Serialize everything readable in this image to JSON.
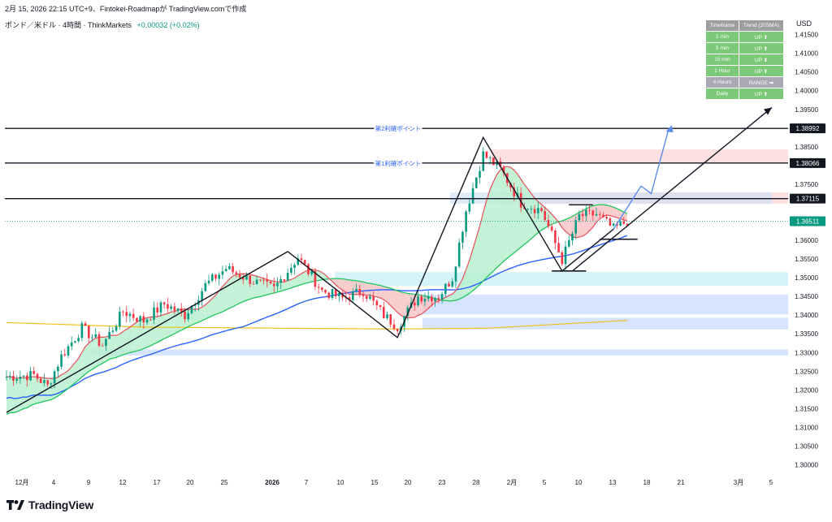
{
  "header": {
    "published": "2月 15, 2026 22:15 UTC+9、Fintokei-Roadmapが TradingView.comで作成",
    "symbol": "ポンド／米ドル · 4時間 · ThinkMarkets",
    "change": "+0.00032 (+0.02%)"
  },
  "currency": "USD",
  "brand": "TradingView",
  "trend_table": {
    "headers": [
      "Timeframe",
      "Trend (20SMA)"
    ],
    "rows": [
      {
        "tf": "1 min",
        "trend": "UP ⬆"
      },
      {
        "tf": "5 min",
        "trend": "UP ⬆"
      },
      {
        "tf": "15 min",
        "trend": "UP ⬆"
      },
      {
        "tf": "1 Hour",
        "trend": "UP ⬆"
      },
      {
        "tf": "4 Hours",
        "trend": "RANGE ➡"
      },
      {
        "tf": "Daily",
        "trend": "UP ⬆"
      }
    ]
  },
  "colors": {
    "up": "#089981",
    "down": "#f23645",
    "ma_fast": "#e8505b",
    "ma_mid": "#22c55e",
    "ma_slow": "#2962ff",
    "ma_long": "#f0c020",
    "fill_up": "#b8f0cf",
    "fill_down": "#f8c4c4",
    "zone_blue": "#d6e4ff",
    "zone_cyan": "#d5f3f8",
    "zone_red": "#fde0e0",
    "forecast": "#5b8def",
    "last_price": "#089981"
  },
  "chart_data": {
    "type": "candlestick",
    "y_range": [
      1.2975,
      1.416
    ],
    "y_ticks": [
      "1.41500",
      "1.41000",
      "1.40500",
      "1.40000",
      "1.39500",
      "1.39000",
      "1.38500",
      "1.38000",
      "1.37500",
      "1.37000",
      "1.36500",
      "1.36000",
      "1.35500",
      "1.35000",
      "1.34500",
      "1.34000",
      "1.33500",
      "1.33000",
      "1.32500",
      "1.32000",
      "1.31500",
      "1.31000",
      "1.30500",
      "1.30000"
    ],
    "x_ticks": [
      "12月",
      "4",
      "9",
      "12",
      "17",
      "20",
      "25",
      "2026",
      "7",
      "10",
      "15",
      "20",
      "23",
      "28",
      "2月",
      "5",
      "10",
      "13",
      "18",
      "21",
      "3月",
      "5"
    ],
    "levels": [
      {
        "price": 1.38992,
        "label": "1.38992",
        "note": "第2利確ポイント"
      },
      {
        "price": 1.38066,
        "label": "1.38066",
        "note": "第1利確ポイント"
      },
      {
        "price": 1.37115,
        "label": "1.37115",
        "note": ""
      }
    ],
    "last_price": {
      "price": 1.36511,
      "label": "1.36511"
    },
    "zones": [
      {
        "type": "resistance",
        "from": 1.3805,
        "to": 1.3843,
        "color": "red"
      },
      {
        "type": "resistance",
        "from": 1.3698,
        "to": 1.3728,
        "color": "red"
      },
      {
        "type": "support",
        "from": 1.3478,
        "to": 1.3515,
        "color": "cyan"
      },
      {
        "type": "support",
        "from": 1.3402,
        "to": 1.3455,
        "color": "blue"
      },
      {
        "type": "support",
        "from": 1.3362,
        "to": 1.3393,
        "color": "blue"
      },
      {
        "type": "support",
        "from": 1.3292,
        "to": 1.3308,
        "color": "blue"
      }
    ],
    "pattern_points": [
      {
        "bar": 0,
        "price": 1.314
      },
      {
        "bar": 82,
        "price": 1.357
      },
      {
        "bar": 114,
        "price": 1.334
      },
      {
        "bar": 139,
        "price": 1.3875
      },
      {
        "bar": 162,
        "price": 1.3518
      },
      {
        "bar": 177,
        "price": 1.363
      }
    ],
    "wedge_top": [
      {
        "bar": 165,
        "price": 1.3518
      },
      {
        "bar": 224,
        "price": 1.3955
      }
    ],
    "forecast_path": [
      {
        "bar": 177,
        "price": 1.363
      },
      {
        "bar": 185,
        "price": 1.3745
      },
      {
        "bar": 188,
        "price": 1.3725
      },
      {
        "bar": 193,
        "price": 1.3895
      }
    ],
    "structure_lines": [
      {
        "from_bar": 159,
        "to_bar": 169,
        "price": 1.3518
      },
      {
        "from_bar": 164,
        "to_bar": 171,
        "price": 1.3695
      },
      {
        "from_bar": 173,
        "to_bar": 184,
        "price": 1.3603
      }
    ],
    "series_anchors": {
      "price": [
        [
          0,
          1.3235
        ],
        [
          8,
          1.324
        ],
        [
          12,
          1.321
        ],
        [
          16,
          1.329
        ],
        [
          22,
          1.3365
        ],
        [
          28,
          1.332
        ],
        [
          34,
          1.341
        ],
        [
          40,
          1.3385
        ],
        [
          46,
          1.343
        ],
        [
          52,
          1.34
        ],
        [
          58,
          1.348
        ],
        [
          64,
          1.3525
        ],
        [
          72,
          1.349
        ],
        [
          78,
          1.347
        ],
        [
          85,
          1.3555
        ],
        [
          92,
          1.3465
        ],
        [
          98,
          1.3445
        ],
        [
          104,
          1.3465
        ],
        [
          110,
          1.34
        ],
        [
          114,
          1.337
        ],
        [
          120,
          1.345
        ],
        [
          126,
          1.345
        ],
        [
          130,
          1.35
        ],
        [
          134,
          1.368
        ],
        [
          139,
          1.383
        ],
        [
          144,
          1.379
        ],
        [
          150,
          1.37
        ],
        [
          156,
          1.368
        ],
        [
          162,
          1.3548
        ],
        [
          167,
          1.3665
        ],
        [
          172,
          1.367
        ],
        [
          177,
          1.363
        ],
        [
          181,
          1.3651
        ]
      ],
      "ma_long": [
        [
          0,
          1.338
        ],
        [
          40,
          1.3368
        ],
        [
          80,
          1.3365
        ],
        [
          114,
          1.3363
        ],
        [
          140,
          1.3365
        ],
        [
          181,
          1.3386
        ]
      ],
      "ma_slow_offset": 0.019,
      "ma_mid_offset": 0.01
    },
    "bar_count": 182
  }
}
